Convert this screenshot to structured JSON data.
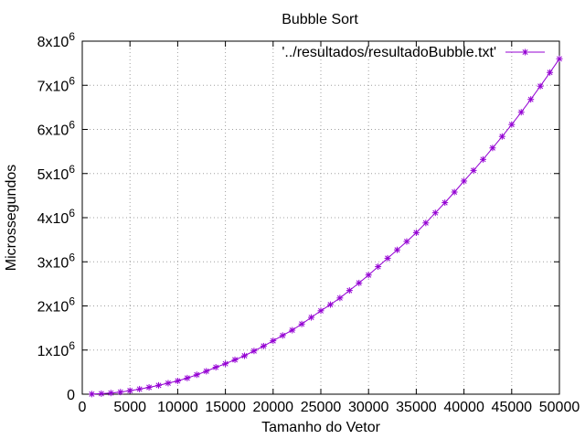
{
  "chart_data": {
    "type": "line",
    "title": "Bubble Sort",
    "xlabel": "Tamanho do Vetor",
    "ylabel": "Microssegundos",
    "xlim": [
      0,
      50000
    ],
    "ylim": [
      0,
      8000000
    ],
    "xticks": [
      {
        "value": 0,
        "label": "0"
      },
      {
        "value": 5000,
        "label": "5000"
      },
      {
        "value": 10000,
        "label": "10000"
      },
      {
        "value": 15000,
        "label": "15000"
      },
      {
        "value": 20000,
        "label": "20000"
      },
      {
        "value": 25000,
        "label": "25000"
      },
      {
        "value": 30000,
        "label": "30000"
      },
      {
        "value": 35000,
        "label": "35000"
      },
      {
        "value": 40000,
        "label": "40000"
      },
      {
        "value": 45000,
        "label": "45000"
      },
      {
        "value": 50000,
        "label": "50000"
      }
    ],
    "yticks": [
      {
        "value": 0,
        "base": "0",
        "exp": ""
      },
      {
        "value": 1000000,
        "base": "1x10",
        "exp": "6"
      },
      {
        "value": 2000000,
        "base": "2x10",
        "exp": "6"
      },
      {
        "value": 3000000,
        "base": "3x10",
        "exp": "6"
      },
      {
        "value": 4000000,
        "base": "4x10",
        "exp": "6"
      },
      {
        "value": 5000000,
        "base": "5x10",
        "exp": "6"
      },
      {
        "value": 6000000,
        "base": "6x10",
        "exp": "6"
      },
      {
        "value": 7000000,
        "base": "7x10",
        "exp": "6"
      },
      {
        "value": 8000000,
        "base": "8x10",
        "exp": "6"
      }
    ],
    "grid": true,
    "legend_position": "top-right",
    "series_color": "#9400d3",
    "series": [
      {
        "name": "'../resultados/resultadoBubble.txt'",
        "marker": "plus-cross",
        "x": [
          1000,
          2000,
          3000,
          4000,
          5000,
          6000,
          7000,
          8000,
          9000,
          10000,
          11000,
          12000,
          13000,
          14000,
          15000,
          16000,
          17000,
          18000,
          19000,
          20000,
          21000,
          22000,
          23000,
          24000,
          25000,
          26000,
          27000,
          28000,
          29000,
          30000,
          31000,
          32000,
          33000,
          34000,
          35000,
          36000,
          37000,
          38000,
          39000,
          40000,
          41000,
          42000,
          43000,
          44000,
          45000,
          46000,
          47000,
          48000,
          49000,
          50000
        ],
        "y": [
          3000,
          12000,
          27000,
          48000,
          80000,
          115000,
          155000,
          200000,
          250000,
          300000,
          365000,
          440000,
          520000,
          610000,
          690000,
          780000,
          870000,
          980000,
          1090000,
          1210000,
          1330000,
          1450000,
          1590000,
          1740000,
          1890000,
          2030000,
          2180000,
          2350000,
          2520000,
          2700000,
          2890000,
          3080000,
          3270000,
          3460000,
          3660000,
          3880000,
          4110000,
          4340000,
          4580000,
          4830000,
          5070000,
          5320000,
          5580000,
          5840000,
          6110000,
          6390000,
          6680000,
          6980000,
          7290000,
          7600000
        ]
      }
    ]
  }
}
